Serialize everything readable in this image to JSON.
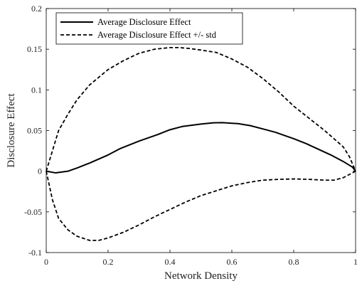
{
  "chart_data": {
    "type": "line",
    "title": "",
    "xlabel": "Network Density",
    "ylabel": "Disclosure Effect",
    "xlim": [
      0,
      1
    ],
    "ylim": [
      -0.1,
      0.2
    ],
    "x_ticks": [
      0,
      0.2,
      0.4,
      0.6,
      0.8,
      1
    ],
    "x_tick_labels": [
      "0",
      "0.2",
      "0.4",
      "0.6",
      "0.8",
      "1"
    ],
    "y_ticks": [
      -0.1,
      -0.05,
      0,
      0.05,
      0.1,
      0.15,
      0.2
    ],
    "y_tick_labels": [
      "-0.1",
      "-0.05",
      "0",
      "0.05",
      "0.1",
      "0.15",
      "0.2"
    ],
    "grid": false,
    "legend_position": "top-left",
    "series": [
      {
        "name": "Average Disclosure Effect",
        "style": "solid",
        "color": "#000000",
        "x": [
          0,
          0.03,
          0.07,
          0.1,
          0.14,
          0.2,
          0.24,
          0.3,
          0.36,
          0.4,
          0.44,
          0.5,
          0.54,
          0.57,
          0.6,
          0.62,
          0.66,
          0.7,
          0.74,
          0.8,
          0.84,
          0.88,
          0.92,
          0.96,
          0.99,
          1.0
        ],
        "y": [
          0.0,
          -0.002,
          0.0,
          0.004,
          0.01,
          0.02,
          0.028,
          0.037,
          0.045,
          0.051,
          0.055,
          0.058,
          0.0595,
          0.0597,
          0.059,
          0.0585,
          0.056,
          0.052,
          0.048,
          0.04,
          0.034,
          0.027,
          0.02,
          0.012,
          0.005,
          0.0
        ]
      },
      {
        "name": "Average Disclosure Effect +/- std",
        "style": "dashed",
        "color": "#000000",
        "x": [
          0,
          0.02,
          0.04,
          0.07,
          0.1,
          0.14,
          0.2,
          0.25,
          0.3,
          0.35,
          0.4,
          0.43,
          0.46,
          0.5,
          0.55,
          0.6,
          0.65,
          0.7,
          0.75,
          0.8,
          0.85,
          0.9,
          0.93,
          0.96,
          0.98,
          1.0
        ],
        "y": [
          0.0,
          0.025,
          0.05,
          0.07,
          0.088,
          0.106,
          0.125,
          0.136,
          0.145,
          0.15,
          0.152,
          0.152,
          0.151,
          0.149,
          0.146,
          0.138,
          0.128,
          0.114,
          0.098,
          0.08,
          0.065,
          0.05,
          0.04,
          0.03,
          0.018,
          0.0
        ]
      },
      {
        "name": "",
        "style": "dashed",
        "color": "#000000",
        "x": [
          0,
          0.02,
          0.04,
          0.07,
          0.1,
          0.14,
          0.17,
          0.2,
          0.25,
          0.3,
          0.35,
          0.4,
          0.45,
          0.5,
          0.55,
          0.6,
          0.65,
          0.7,
          0.75,
          0.8,
          0.85,
          0.9,
          0.93,
          0.96,
          0.98,
          1.0
        ],
        "y": [
          0.0,
          -0.035,
          -0.058,
          -0.072,
          -0.08,
          -0.085,
          -0.085,
          -0.082,
          -0.075,
          -0.066,
          -0.056,
          -0.047,
          -0.038,
          -0.03,
          -0.024,
          -0.018,
          -0.014,
          -0.011,
          -0.01,
          -0.0095,
          -0.01,
          -0.011,
          -0.011,
          -0.008,
          -0.004,
          0.0
        ]
      }
    ],
    "legend_entries": [
      {
        "label": "Average Disclosure Effect",
        "style": "solid"
      },
      {
        "label": "Average Disclosure Effect +/- std",
        "style": "dashed"
      }
    ]
  }
}
